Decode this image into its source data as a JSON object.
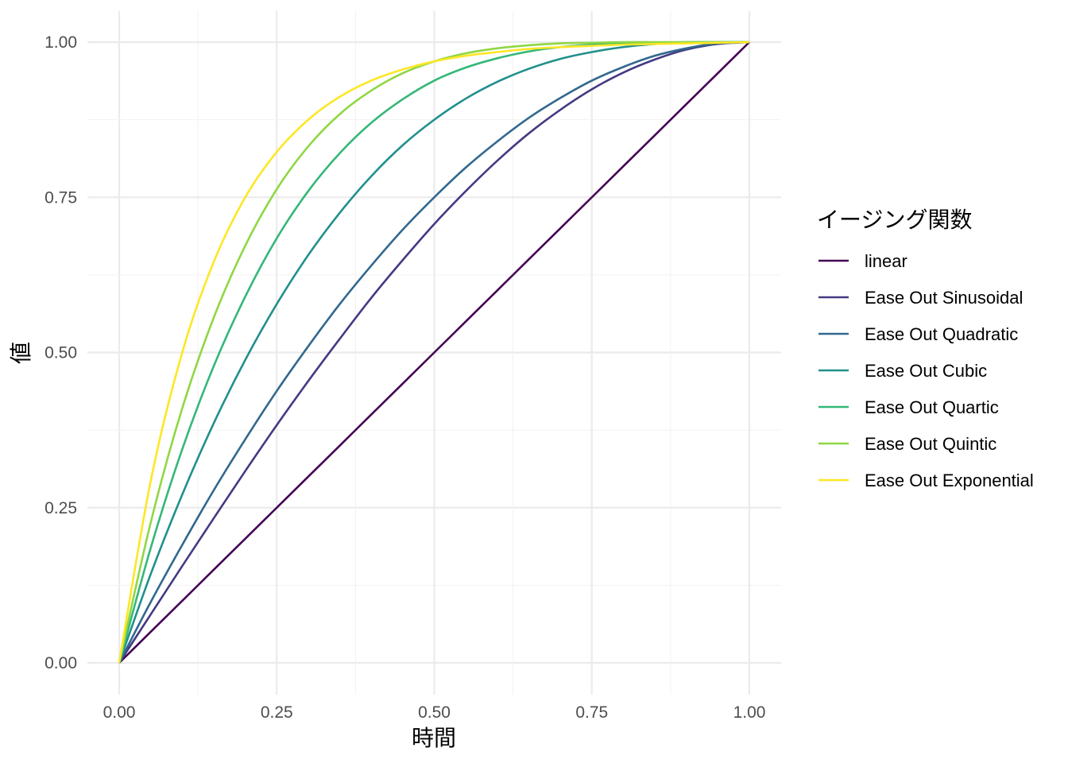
{
  "chart_data": {
    "type": "line",
    "xlabel": "時間",
    "ylabel": "値",
    "xlim": [
      0,
      1
    ],
    "ylim": [
      0,
      1
    ],
    "x_ticks": [
      "0.00",
      "0.25",
      "0.50",
      "0.75",
      "1.00"
    ],
    "y_ticks": [
      "0.00",
      "0.25",
      "0.50",
      "0.75",
      "1.00"
    ],
    "grid": true,
    "legend": {
      "title": "イージング関数",
      "placement": "right"
    },
    "x": [
      0,
      0.05,
      0.1,
      0.15,
      0.2,
      0.25,
      0.3,
      0.35,
      0.4,
      0.45,
      0.5,
      0.55,
      0.6,
      0.65,
      0.7,
      0.75,
      0.8,
      0.85,
      0.9,
      0.95,
      1
    ],
    "series": [
      {
        "name": "linear",
        "color": "#440154",
        "values": [
          0,
          0.05,
          0.1,
          0.15,
          0.2,
          0.25,
          0.3,
          0.35,
          0.4,
          0.45,
          0.5,
          0.55,
          0.6,
          0.65,
          0.7,
          0.75,
          0.8,
          0.85,
          0.9,
          0.95,
          1
        ]
      },
      {
        "name": "Ease Out Sinusoidal",
        "color": "#443A83",
        "values": [
          0,
          0.078,
          0.156,
          0.233,
          0.309,
          0.383,
          0.454,
          0.522,
          0.588,
          0.649,
          0.707,
          0.76,
          0.809,
          0.853,
          0.891,
          0.924,
          0.951,
          0.972,
          0.988,
          0.997,
          1
        ]
      },
      {
        "name": "Ease Out Quadratic",
        "color": "#31688E",
        "values": [
          0,
          0.098,
          0.19,
          0.278,
          0.36,
          0.438,
          0.51,
          0.578,
          0.64,
          0.698,
          0.75,
          0.798,
          0.84,
          0.878,
          0.91,
          0.938,
          0.96,
          0.978,
          0.99,
          0.998,
          1
        ]
      },
      {
        "name": "Ease Out Cubic",
        "color": "#21908C",
        "values": [
          0,
          0.143,
          0.271,
          0.386,
          0.488,
          0.578,
          0.657,
          0.725,
          0.784,
          0.834,
          0.875,
          0.909,
          0.936,
          0.957,
          0.973,
          0.984,
          0.992,
          0.997,
          0.999,
          1,
          1
        ]
      },
      {
        "name": "Ease Out Quartic",
        "color": "#35B779",
        "values": [
          0,
          0.185,
          0.344,
          0.478,
          0.59,
          0.684,
          0.76,
          0.821,
          0.87,
          0.908,
          0.938,
          0.959,
          0.974,
          0.985,
          0.992,
          0.996,
          0.998,
          0.999,
          1,
          1,
          1
        ]
      },
      {
        "name": "Ease Out Quintic",
        "color": "#8FD744",
        "values": [
          0,
          0.226,
          0.41,
          0.556,
          0.672,
          0.763,
          0.832,
          0.884,
          0.922,
          0.95,
          0.969,
          0.982,
          0.99,
          0.995,
          0.998,
          0.999,
          1,
          1,
          1,
          1,
          1
        ]
      },
      {
        "name": "Ease Out Exponential",
        "color": "#FDE725",
        "values": [
          0,
          0.293,
          0.5,
          0.646,
          0.75,
          0.823,
          0.875,
          0.912,
          0.938,
          0.956,
          0.969,
          0.978,
          0.984,
          0.989,
          0.992,
          0.994,
          0.996,
          0.997,
          0.998,
          0.999,
          1
        ]
      }
    ]
  }
}
